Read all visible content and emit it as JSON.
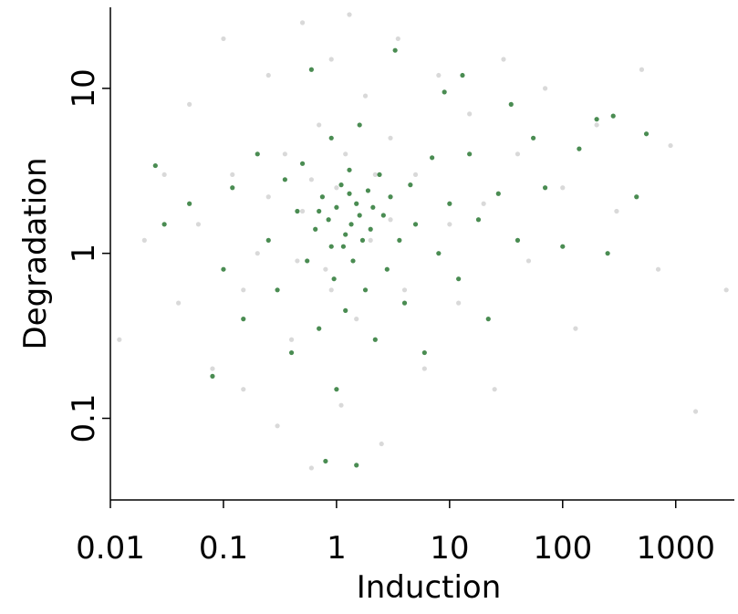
{
  "chart_data": {
    "type": "scatter",
    "x_label": "Induction",
    "y_label": "Degradation",
    "xlog": true,
    "ylog": true,
    "xlim": [
      0.01,
      3300
    ],
    "ylim": [
      0.032,
      31
    ],
    "xticks": [
      0.01,
      0.1,
      1,
      10,
      100,
      1000
    ],
    "yticks": [
      0.1,
      1,
      10
    ],
    "series": [
      {
        "color": "#d9d9d9",
        "x": [
          0.012,
          0.02,
          0.03,
          0.04,
          0.05,
          0.06,
          0.08,
          0.1,
          0.12,
          0.15,
          0.2,
          0.25,
          0.3,
          0.35,
          0.4,
          0.5,
          0.5,
          0.6,
          0.7,
          0.8,
          0.9,
          1,
          1.1,
          1.3,
          1.5,
          1.8,
          2,
          2.5,
          3,
          3.5,
          4,
          5,
          6,
          8,
          10,
          12,
          15,
          20,
          25,
          30,
          40,
          50,
          70,
          100,
          130,
          200,
          300,
          500,
          700,
          900,
          1500,
          2800,
          0.15,
          0.25,
          0.45,
          1.2,
          2.2,
          0.9,
          3,
          0.6
        ],
        "values": [
          0.3,
          1.2,
          3,
          0.5,
          8,
          1.5,
          0.2,
          20,
          3,
          0.6,
          1,
          12,
          0.09,
          4,
          0.3,
          25,
          1.8,
          0.05,
          6,
          0.8,
          15,
          2.5,
          0.12,
          28,
          0.4,
          9,
          1.2,
          0.07,
          5,
          20,
          0.6,
          3,
          0.2,
          12,
          1.5,
          0.5,
          7,
          2,
          0.15,
          15,
          4,
          0.9,
          10,
          2.5,
          0.35,
          6,
          1.8,
          13,
          0.8,
          4.5,
          0.11,
          0.6,
          0.15,
          2.2,
          0.9,
          4,
          3,
          0.6,
          1.6,
          2.8
        ]
      },
      {
        "color": "#4a8c52",
        "x": [
          0.025,
          0.03,
          0.05,
          0.08,
          0.1,
          0.12,
          0.15,
          0.2,
          0.25,
          0.3,
          0.35,
          0.4,
          0.45,
          0.5,
          0.55,
          0.6,
          0.65,
          0.7,
          0.75,
          0.8,
          0.85,
          0.9,
          0.95,
          1,
          1,
          1.1,
          1.15,
          1.2,
          1.3,
          1.35,
          1.4,
          1.5,
          1.5,
          1.6,
          1.7,
          1.8,
          1.9,
          2,
          2.2,
          2.4,
          2.6,
          2.8,
          3,
          3.3,
          3.6,
          4,
          4.5,
          5,
          6,
          7,
          8,
          9,
          10,
          12,
          13,
          15,
          18,
          22,
          27,
          35,
          40,
          55,
          70,
          100,
          140,
          200,
          280,
          450,
          550,
          250,
          0.7,
          1.2,
          1.6,
          2.1,
          0.9,
          1.3
        ],
        "values": [
          3.4,
          1.5,
          2,
          0.18,
          0.8,
          2.5,
          0.4,
          4,
          1.2,
          0.6,
          2.8,
          0.25,
          1.8,
          3.5,
          0.9,
          13,
          1.4,
          0.35,
          2.2,
          0.055,
          1.6,
          5,
          0.7,
          1.9,
          0.15,
          2.6,
          1.1,
          0.45,
          3.2,
          1.5,
          0.9,
          0.052,
          2,
          6,
          1.2,
          0.6,
          2.4,
          1.4,
          0.3,
          3,
          1.7,
          0.8,
          2.2,
          17,
          1.2,
          0.5,
          2.6,
          1.5,
          0.25,
          3.8,
          1,
          9.5,
          2,
          0.7,
          12,
          4,
          1.6,
          0.4,
          2.3,
          8,
          1.2,
          5,
          2.5,
          1.1,
          4.3,
          6.5,
          6.8,
          2.2,
          5.3,
          1,
          1.8,
          1.3,
          1.7,
          1.9,
          1.1,
          2.3
        ]
      }
    ]
  }
}
